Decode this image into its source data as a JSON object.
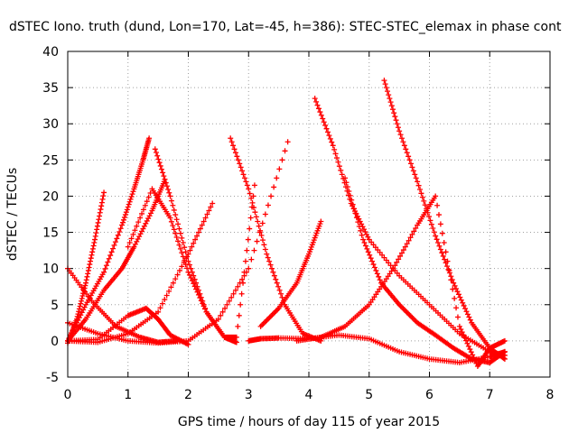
{
  "chart_data": {
    "type": "scatter",
    "title": "dSTEC Iono. truth (dund, Lon=170, Lat=-45, h=386): STEC-STEC_elemax in phase cont",
    "xlabel": "GPS time / hours of day 115 of year 2015",
    "ylabel": "dSTEC  / TECUs",
    "xlim": [
      0,
      8
    ],
    "ylim": [
      -5,
      40
    ],
    "xticks": [
      0,
      1,
      2,
      3,
      4,
      5,
      6,
      7,
      8
    ],
    "yticks": [
      -5,
      0,
      5,
      10,
      15,
      20,
      25,
      30,
      35,
      40
    ],
    "grid": true,
    "marker": "plus",
    "color": "#ff0000",
    "series": [
      {
        "x": [
          0.0,
          0.15,
          0.3,
          0.45,
          0.6
        ],
        "y": [
          -0.3,
          3,
          8,
          14,
          20.5
        ]
      },
      {
        "x": [
          0.0,
          0.3,
          0.6,
          0.9,
          1.1,
          1.25,
          1.35
        ],
        "y": [
          0,
          5,
          9.5,
          16,
          21,
          25,
          28
        ]
      },
      {
        "x": [
          0.0,
          0.3,
          0.6,
          0.9,
          1.1,
          1.4,
          1.6
        ],
        "y": [
          0,
          3,
          7,
          10,
          13,
          18,
          22
        ]
      },
      {
        "x": [
          0.0,
          0.5,
          1.0,
          1.5,
          2.0,
          2.4
        ],
        "y": [
          0,
          -0.2,
          1,
          4,
          12,
          19
        ]
      },
      {
        "x": [
          0.0,
          0.5,
          1.0,
          1.3,
          1.5,
          1.7,
          2.0
        ],
        "y": [
          0,
          0.2,
          3.5,
          4.5,
          3,
          0.8,
          -0.5
        ]
      },
      {
        "x": [
          0.0,
          0.4,
          0.8,
          1.2,
          1.5,
          1.8
        ],
        "y": [
          10,
          5.5,
          2,
          0.5,
          -0.2,
          0
        ]
      },
      {
        "x": [
          0.0,
          0.5,
          1.0,
          1.5,
          2.0,
          2.5,
          3.0,
          3.65
        ],
        "y": [
          2.5,
          1,
          0,
          -0.3,
          0,
          3,
          10,
          27.5
        ]
      },
      {
        "x": [
          1.45,
          1.7,
          2.0,
          2.3,
          2.6,
          2.8
        ],
        "y": [
          26.5,
          20,
          11,
          4,
          0.5,
          -0.2
        ]
      },
      {
        "x": [
          1.0,
          1.4,
          1.7,
          2.0,
          2.3,
          2.6,
          2.8,
          3.1
        ],
        "y": [
          13,
          21,
          17,
          9.5,
          4,
          0.5,
          0.5,
          21.5
        ]
      },
      {
        "x": [
          2.7,
          3.0,
          3.3,
          3.6,
          3.9,
          4.2
        ],
        "y": [
          28,
          21,
          12,
          5,
          1,
          0
        ]
      },
      {
        "x": [
          3.0,
          3.2,
          3.5,
          4.0,
          4.5,
          5.0,
          5.5,
          6.0,
          6.5,
          7.0,
          7.25
        ],
        "y": [
          0,
          0.3,
          0.4,
          0.3,
          0.8,
          0.3,
          -1.5,
          -2.5,
          -3,
          -2.2,
          -1.5
        ]
      },
      {
        "x": [
          3.2,
          3.5,
          3.8,
          4.0,
          4.2
        ],
        "y": [
          2,
          4.5,
          8,
          12,
          16.5
        ]
      },
      {
        "x": [
          4.1,
          4.4,
          4.7,
          5.0,
          5.5,
          6.0,
          6.5,
          7.0,
          7.25
        ],
        "y": [
          33.5,
          27,
          19,
          14,
          9,
          5,
          1,
          -1.5,
          -2
        ]
      },
      {
        "x": [
          5.25,
          5.5,
          5.8,
          6.1,
          6.4,
          6.7,
          7.0,
          7.25
        ],
        "y": [
          36,
          29,
          22,
          14.5,
          8,
          2.5,
          -1,
          -2.5
        ]
      },
      {
        "x": [
          4.6,
          4.9,
          5.2,
          5.5,
          5.8,
          6.1,
          6.4,
          6.7,
          7.0,
          7.25
        ],
        "y": [
          22.5,
          14,
          8,
          5,
          2.5,
          0.8,
          -1,
          -2.5,
          -3,
          -1.5
        ]
      },
      {
        "x": [
          3.8,
          4.2,
          4.6,
          5.0,
          5.4,
          5.8,
          6.1,
          6.5,
          6.8,
          7.0,
          7.25
        ],
        "y": [
          0,
          0.5,
          2,
          5,
          10,
          16,
          20,
          2,
          -3.5,
          -1,
          0
        ]
      }
    ]
  }
}
